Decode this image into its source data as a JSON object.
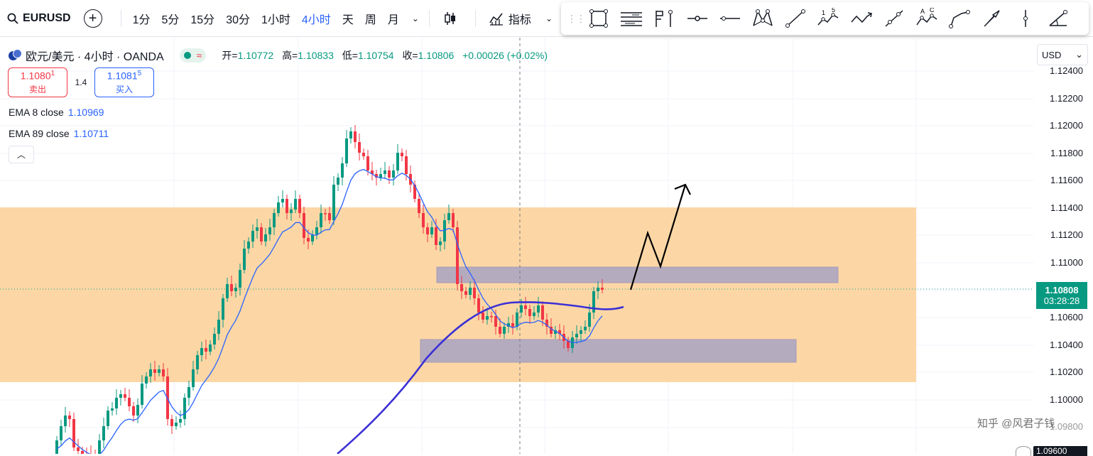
{
  "toolbar": {
    "symbol": "EURUSD",
    "timeframes": [
      "1分",
      "5分",
      "15分",
      "30分",
      "1小时",
      "4小时",
      "天",
      "周",
      "月"
    ],
    "active_timeframe": "4小时",
    "indicators_label": "指标"
  },
  "drawing_tools": [
    "rectangle-tool-icon",
    "parallel-channel-icon",
    "flag-marker-icon",
    "info-line-icon",
    "horizontal-line-icon",
    "xabcd-pattern-icon",
    "trend-line-icon",
    "elliott-wave-icon",
    "zigzag-icon",
    "multipoint-line-icon",
    "abcd-pattern-icon",
    "path-icon",
    "arrow-icon",
    "vertical-line-icon",
    "trend-angle-icon"
  ],
  "elliott_labels": [
    "1",
    "5"
  ],
  "abcd_labels": [
    "A",
    "C"
  ],
  "legend": {
    "title": "欧元/美元 · 4小时 · OANDA",
    "open_label": "开=",
    "open": "1.10772",
    "high_label": "高=",
    "high": "1.10833",
    "low_label": "低=",
    "low": "1.10754",
    "close_label": "收=",
    "close": "1.10806",
    "change": "+0.00026 (+0.02%)"
  },
  "bidask": {
    "sell_price": "1.1080",
    "sell_pip": "1",
    "sell_label": "卖出",
    "spread": "1.4",
    "buy_price": "1.1081",
    "buy_pip": "5",
    "buy_label": "买入"
  },
  "ema": [
    {
      "label": "EMA 8 close",
      "value": "1.10969"
    },
    {
      "label": "EMA 89 close",
      "value": "1.10711"
    }
  ],
  "axis": {
    "currency": "USD",
    "ticks": [
      "1.12400",
      "1.12200",
      "1.12000",
      "1.11800",
      "1.11600",
      "1.11400",
      "1.11200",
      "1.11000",
      "1.10600",
      "1.10400",
      "1.10200",
      "1.10000"
    ],
    "partial_tick": "1.09800",
    "bottom_partial": "1.09600"
  },
  "price_tag": {
    "price": "1.10808",
    "countdown": "03:28:28"
  },
  "watermark": "知乎 @风君子钱",
  "colors": {
    "up": "#089981",
    "down": "#f23645",
    "accent": "#2962ff",
    "zone": "#fcd39b",
    "box": "#9e9dc8"
  }
}
